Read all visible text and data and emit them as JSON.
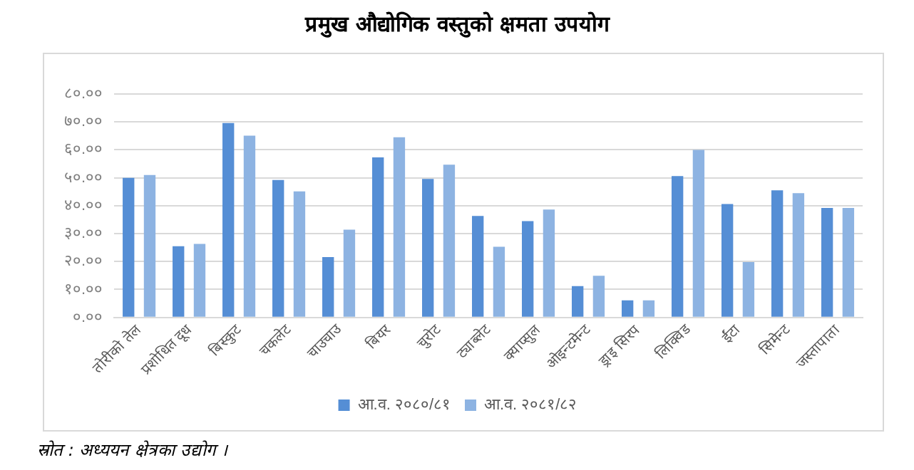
{
  "chart_data": {
    "type": "bar",
    "title": "प्रमुख औद्योगिक वस्तुको क्षमता उपयोग",
    "categories": [
      "तोरीको तेल",
      "प्रशोधित दूध",
      "बिस्कुट",
      "चकलेट",
      "चाउचाउ",
      "बियर",
      "चुरोट",
      "ट्याब्लेट",
      "क्याप्सुल",
      "ओइन्टमेन्ट",
      "ड्राइ सिरप",
      "लिक्विड",
      "ईंटा",
      "सिमेन्ट",
      "जस्तापाता"
    ],
    "series": [
      {
        "name": "आ.व. २०८०/८१",
        "color": "#558ed5",
        "values": [
          50.0,
          25.5,
          69.6,
          49.2,
          21.6,
          57.3,
          49.6,
          36.3,
          34.5,
          11.2,
          6.1,
          50.6,
          40.6,
          45.5,
          39.2
        ]
      },
      {
        "name": "आ.व. २०८१/८२",
        "color": "#8db3e2",
        "values": [
          51.0,
          26.3,
          65.1,
          45.1,
          31.4,
          64.5,
          54.7,
          25.3,
          38.6,
          14.9,
          6.1,
          60.0,
          19.8,
          44.5,
          39.2
        ]
      }
    ],
    "ylim": [
      0,
      80
    ],
    "yticks": [
      {
        "value": 0,
        "label": "०.००"
      },
      {
        "value": 10,
        "label": "१०.००"
      },
      {
        "value": 20,
        "label": "२०.००"
      },
      {
        "value": 30,
        "label": "३०.००"
      },
      {
        "value": 40,
        "label": "४०.००"
      },
      {
        "value": 50,
        "label": "५०.००"
      },
      {
        "value": 60,
        "label": "६०.००"
      },
      {
        "value": 70,
        "label": "७०.००"
      },
      {
        "value": 80,
        "label": "८०.००"
      }
    ],
    "grid": "y",
    "legend": "bottom",
    "annotations": [
      "स्रोत : अध्ययन क्षेत्रका उद्योग ।"
    ]
  }
}
